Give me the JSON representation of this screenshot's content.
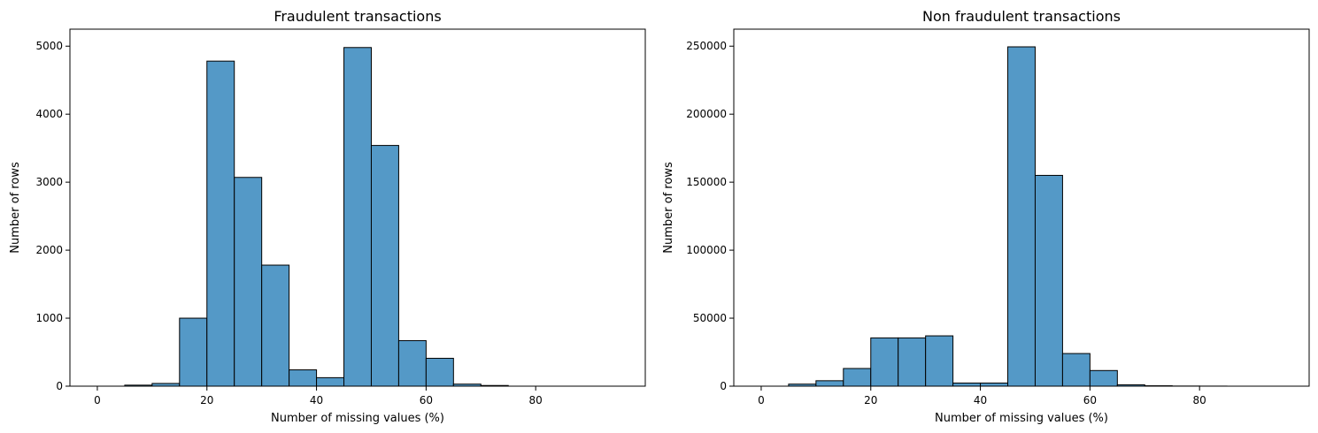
{
  "chart_data": [
    {
      "type": "bar",
      "title": "Fraudulent transactions",
      "xlabel": "Number of missing values (%)",
      "ylabel": "Number of rows",
      "bin_edges": [
        0,
        5,
        10,
        15,
        20,
        25,
        30,
        35,
        40,
        45,
        50,
        55,
        60,
        65,
        70,
        75,
        80,
        85,
        90,
        95
      ],
      "values": [
        0,
        15,
        40,
        1000,
        4780,
        3070,
        1780,
        240,
        125,
        4980,
        3540,
        670,
        410,
        30,
        10,
        0,
        0,
        0,
        0
      ],
      "xlim": [
        -5,
        100
      ],
      "ylim": [
        0,
        5250
      ],
      "xticks": [
        0,
        20,
        40,
        60,
        80
      ],
      "yticks": [
        0,
        1000,
        2000,
        3000,
        4000,
        5000
      ],
      "grid": false,
      "legend": "none",
      "bar_color": "#5499c7"
    },
    {
      "type": "bar",
      "title": "Non fraudulent transactions",
      "xlabel": "Number of missing values (%)",
      "ylabel": "Number of rows",
      "bin_edges": [
        0,
        5,
        10,
        15,
        20,
        25,
        30,
        35,
        40,
        45,
        50,
        55,
        60,
        65,
        70,
        75,
        80,
        85,
        90,
        95
      ],
      "values": [
        0,
        1500,
        4000,
        13000,
        35500,
        35500,
        37000,
        2300,
        2300,
        249500,
        155000,
        24000,
        11500,
        1000,
        300,
        100,
        50,
        0,
        0
      ],
      "xlim": [
        -5,
        100
      ],
      "ylim": [
        0,
        262500
      ],
      "xticks": [
        0,
        20,
        40,
        60,
        80
      ],
      "yticks": [
        0,
        50000,
        100000,
        150000,
        200000,
        250000
      ],
      "grid": false,
      "legend": "none",
      "bar_color": "#5499c7"
    }
  ]
}
